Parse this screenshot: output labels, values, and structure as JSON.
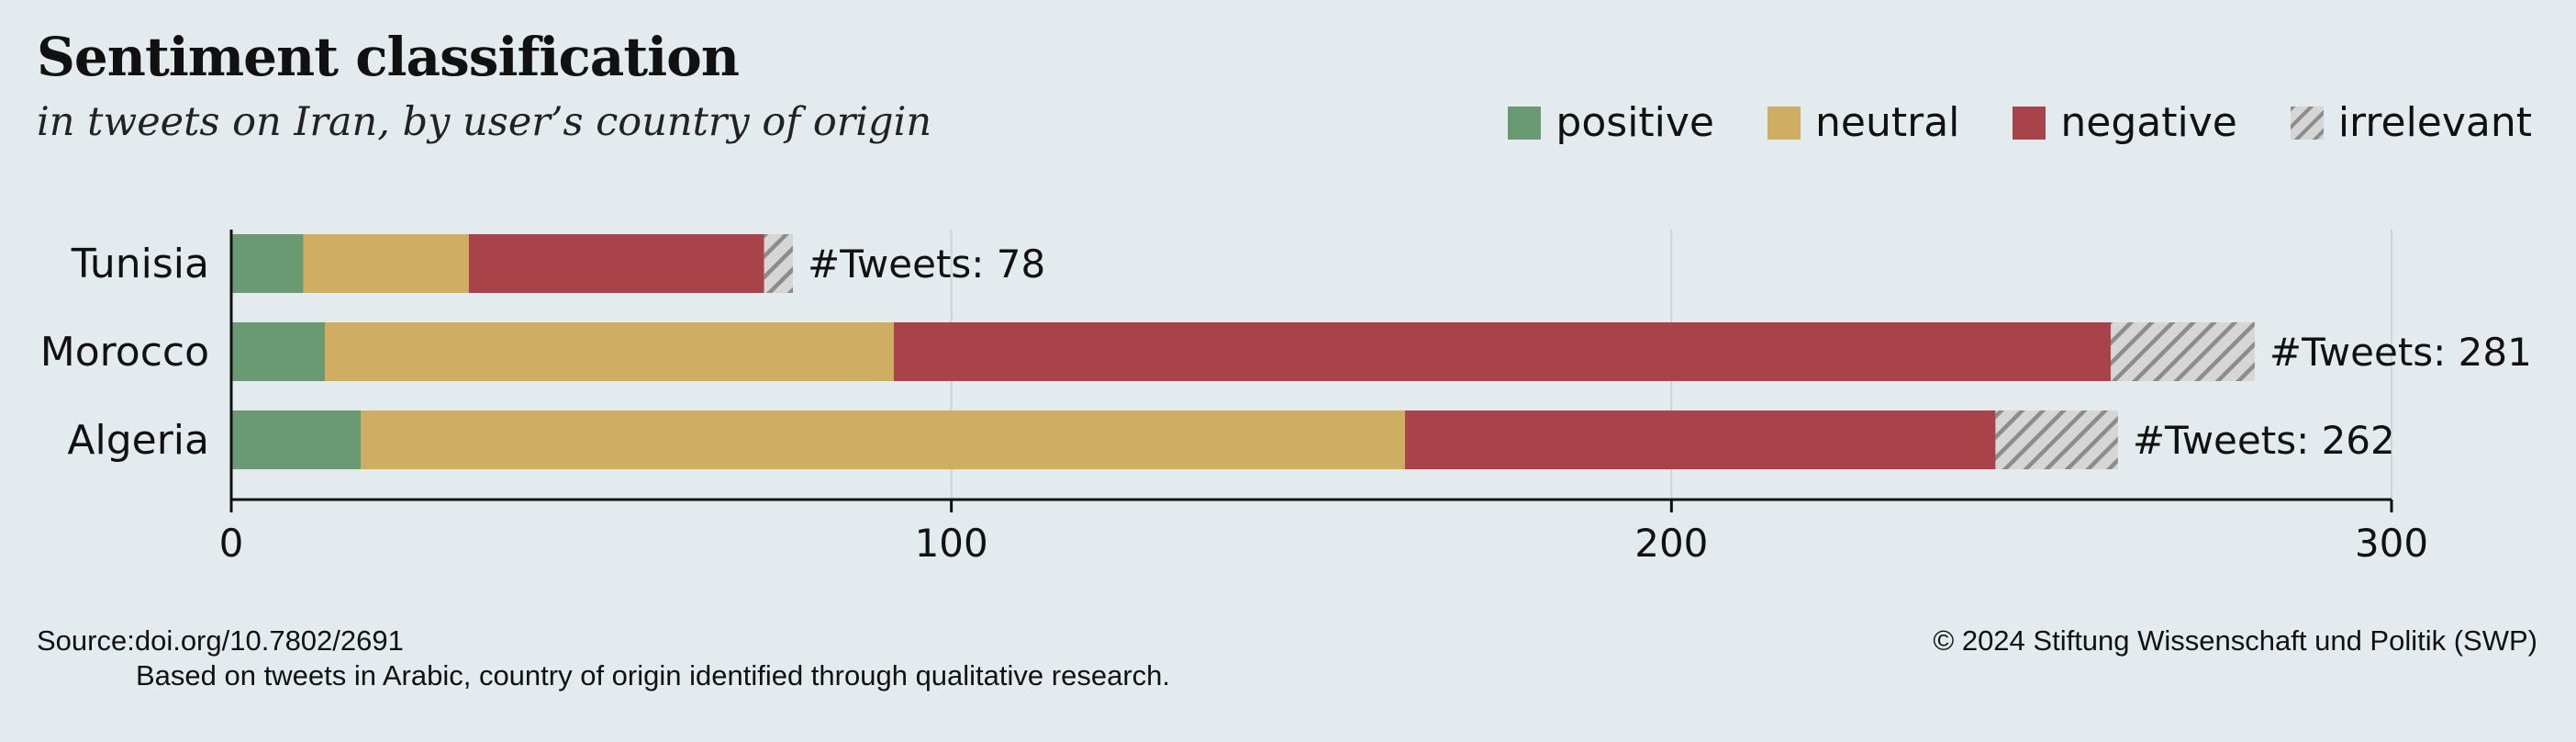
{
  "title": "Sentiment classification",
  "subtitle": "in tweets on Iran, by user’s country of origin",
  "legend": [
    {
      "label": "positive",
      "color": "#6a9a72",
      "pattern": false
    },
    {
      "label": "neutral",
      "color": "#cfad62",
      "pattern": false
    },
    {
      "label": "negative",
      "color": "#a84349",
      "pattern": false
    },
    {
      "label": "irrelevant",
      "color": "#bcbcbc",
      "pattern": true
    }
  ],
  "footer": {
    "source": "Source:doi.org/10.7802/2691",
    "note": "Based on tweets in Arabic, country of origin identified through qualitative research.",
    "copyright": "© 2024 Stiftung Wissenschaft und Politik (SWP)"
  },
  "chart_data": {
    "type": "bar",
    "orientation": "horizontal",
    "stacked": true,
    "categories": [
      "Tunisia",
      "Morocco",
      "Algeria"
    ],
    "series": [
      {
        "name": "positive",
        "values": [
          10,
          13,
          18
        ]
      },
      {
        "name": "neutral",
        "values": [
          23,
          79,
          145
        ]
      },
      {
        "name": "negative",
        "values": [
          41,
          169,
          82
        ]
      },
      {
        "name": "irrelevant",
        "values": [
          4,
          20,
          17
        ]
      }
    ],
    "totals": [
      78,
      281,
      262
    ],
    "total_label_prefix": "#Tweets: ",
    "xlim": [
      0,
      300
    ],
    "xticks": [
      0,
      100,
      200,
      300
    ],
    "grid": "vertical",
    "legend_position": "top-right"
  }
}
